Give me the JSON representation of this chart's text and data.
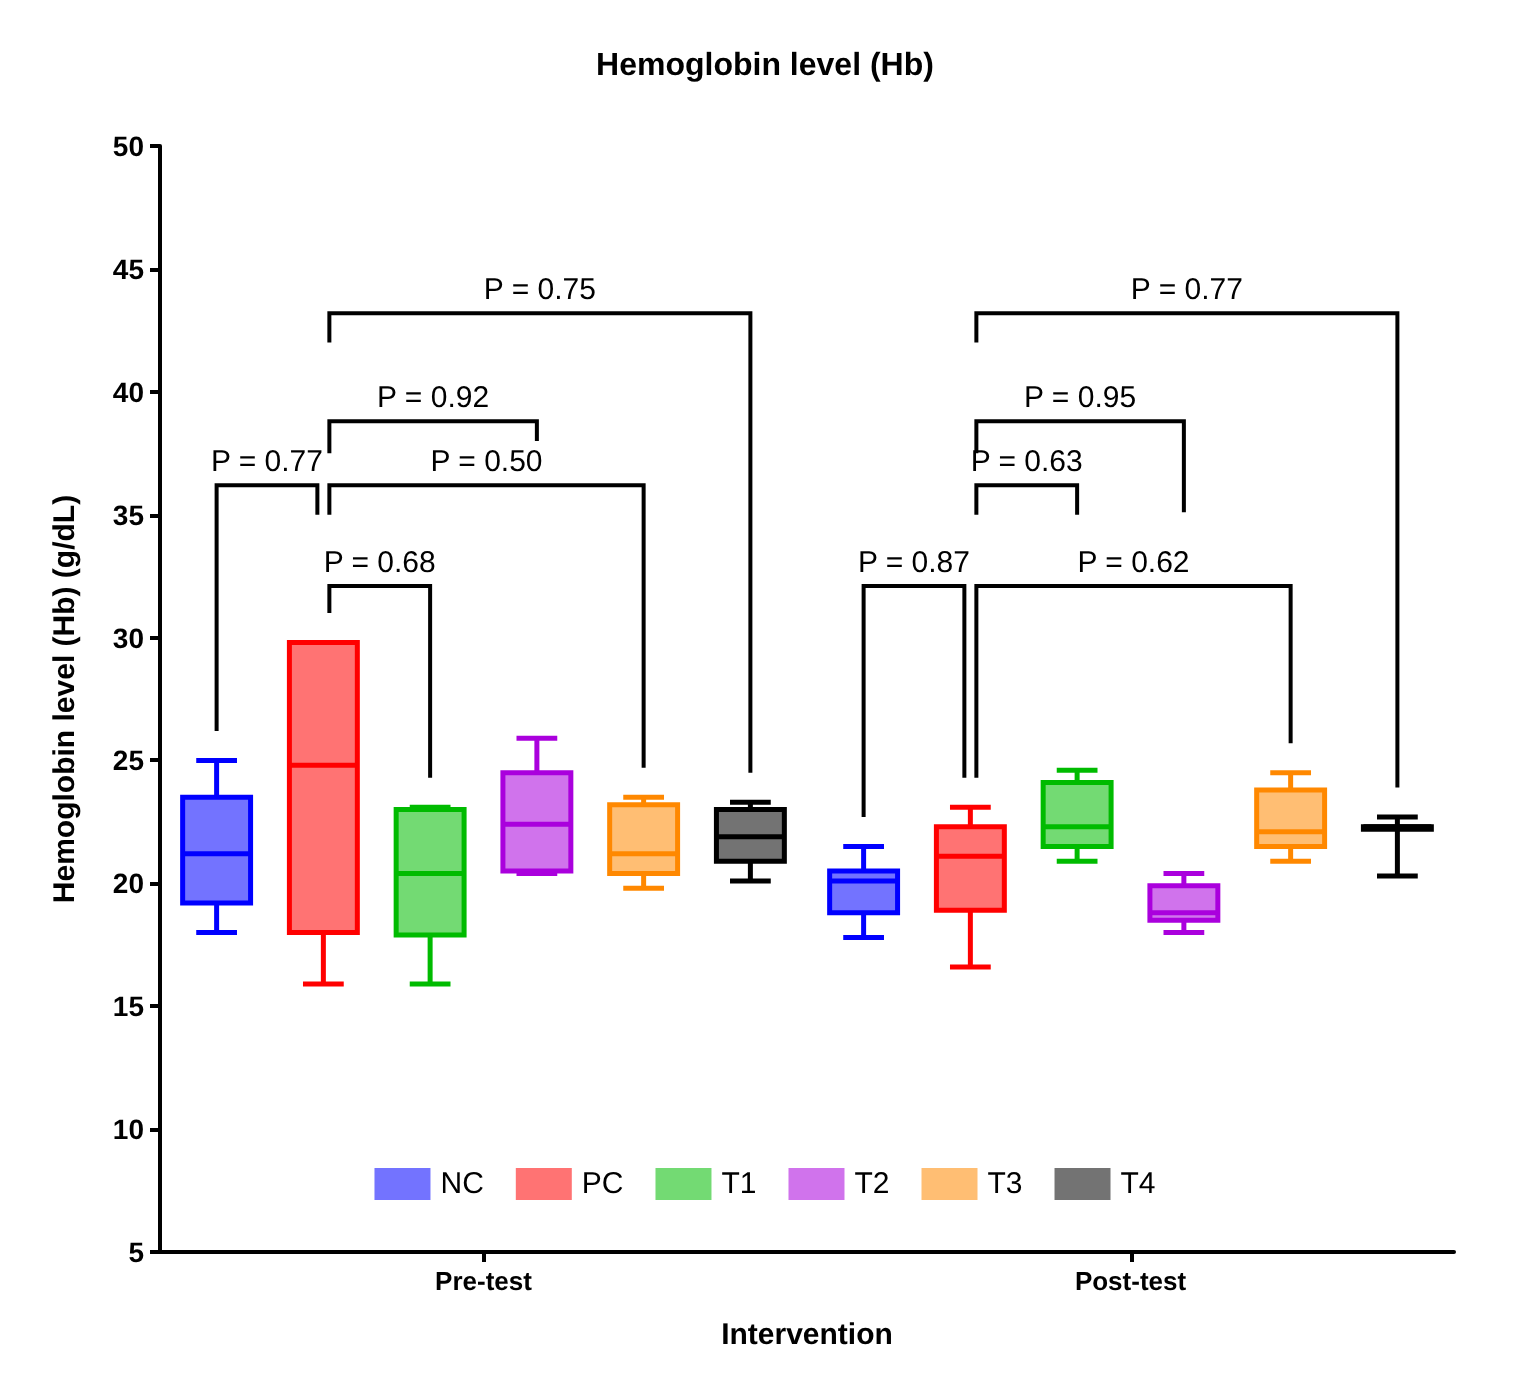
{
  "chart_data": {
    "type": "box",
    "title": "Hemoglobin level (Hb)",
    "xlabel": "Intervention",
    "ylabel": "Hemoglobin level (Hb) (g/dL)",
    "categories": [
      "Pre-test",
      "Post-test"
    ],
    "ylim": [
      5,
      50
    ],
    "yticks": [
      5,
      10,
      15,
      20,
      25,
      30,
      35,
      40,
      45,
      50
    ],
    "grid": false,
    "legend": "bottom",
    "series": [
      {
        "name": "NC",
        "color": "#0000ff",
        "boxes": [
          {
            "low": 18.0,
            "q1": 19.2,
            "median": 21.2,
            "q3": 23.5,
            "high": 25.0
          },
          {
            "low": 17.8,
            "q1": 18.8,
            "median": 20.1,
            "q3": 20.5,
            "high": 21.5
          }
        ]
      },
      {
        "name": "PC",
        "color": "#ff0000",
        "boxes": [
          {
            "low": 15.9,
            "q1": 18.0,
            "median": 24.8,
            "q3": 29.8,
            "high": 29.8
          },
          {
            "low": 16.6,
            "q1": 18.9,
            "median": 21.1,
            "q3": 22.3,
            "high": 23.1
          }
        ]
      },
      {
        "name": "T1",
        "color": "#00bb00",
        "boxes": [
          {
            "low": 15.9,
            "q1": 17.9,
            "median": 20.4,
            "q3": 23.0,
            "high": 23.1
          },
          {
            "low": 20.9,
            "q1": 21.5,
            "median": 22.3,
            "q3": 24.1,
            "high": 24.6
          }
        ]
      },
      {
        "name": "T2",
        "color": "#aa00dd",
        "boxes": [
          {
            "low": 20.4,
            "q1": 20.5,
            "median": 22.4,
            "q3": 24.5,
            "high": 25.9
          },
          {
            "low": 18.0,
            "q1": 18.5,
            "median": 18.8,
            "q3": 19.9,
            "high": 20.4
          }
        ]
      },
      {
        "name": "T3",
        "color": "#ff8800",
        "boxes": [
          {
            "low": 19.8,
            "q1": 20.4,
            "median": 21.2,
            "q3": 23.2,
            "high": 23.5
          },
          {
            "low": 20.9,
            "q1": 21.5,
            "median": 22.1,
            "q3": 23.8,
            "high": 24.5
          }
        ]
      },
      {
        "name": "T4",
        "color": "#000000",
        "boxes": [
          {
            "low": 20.1,
            "q1": 20.9,
            "median": 21.9,
            "q3": 23.0,
            "high": 23.3
          },
          {
            "low": 20.3,
            "q1": 22.2,
            "median": 22.3,
            "q3": 22.3,
            "high": 22.7
          }
        ]
      }
    ],
    "annotations": [
      "P = 0.77",
      "P = 0.92",
      "P = 0.75",
      "P = 0.50",
      "P = 0.68",
      "P = 0.87",
      "P = 0.63",
      "P = 0.95",
      "P = 0.77",
      "P = 0.62"
    ]
  }
}
